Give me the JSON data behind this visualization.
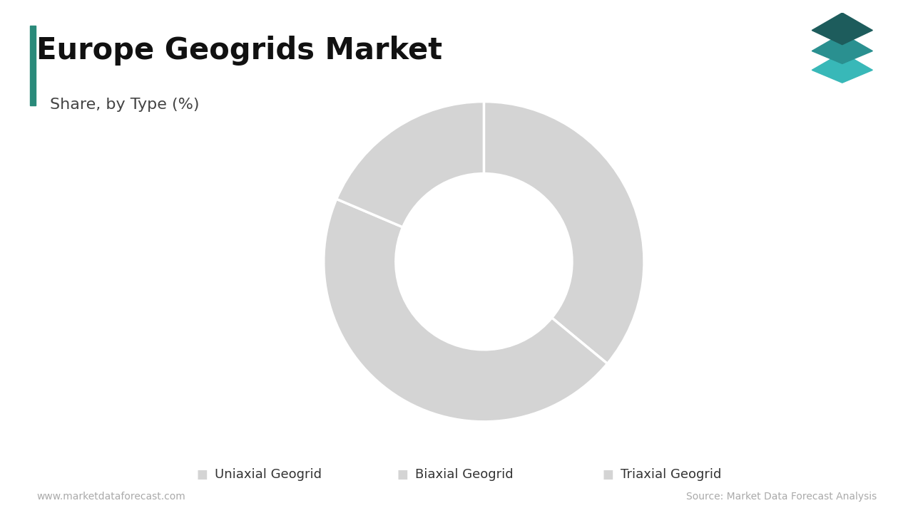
{
  "title": "Europe Geogrids Market",
  "subtitle": "Share, by Type (%)",
  "labels": [
    "Uniaxial Geogrid",
    "Biaxial Geogrid",
    "Triaxial Geogrid"
  ],
  "values": [
    36.0,
    45.4,
    18.6
  ],
  "colors": [
    "#d4d4d4",
    "#d4d4d4",
    "#d4d4d4"
  ],
  "wedge_edge_color": "#ffffff",
  "wedge_edge_width": 2.5,
  "donut_hole": 0.55,
  "background_color": "#ffffff",
  "title_fontsize": 30,
  "subtitle_fontsize": 16,
  "legend_fontsize": 13,
  "footer_left": "www.marketdataforecast.com",
  "footer_right": "Source: Market Data Forecast Analysis",
  "footer_fontsize": 10,
  "title_bar_color": "#2a8a7a",
  "legend_marker_color": "#d4d4d4",
  "startangle": 90
}
